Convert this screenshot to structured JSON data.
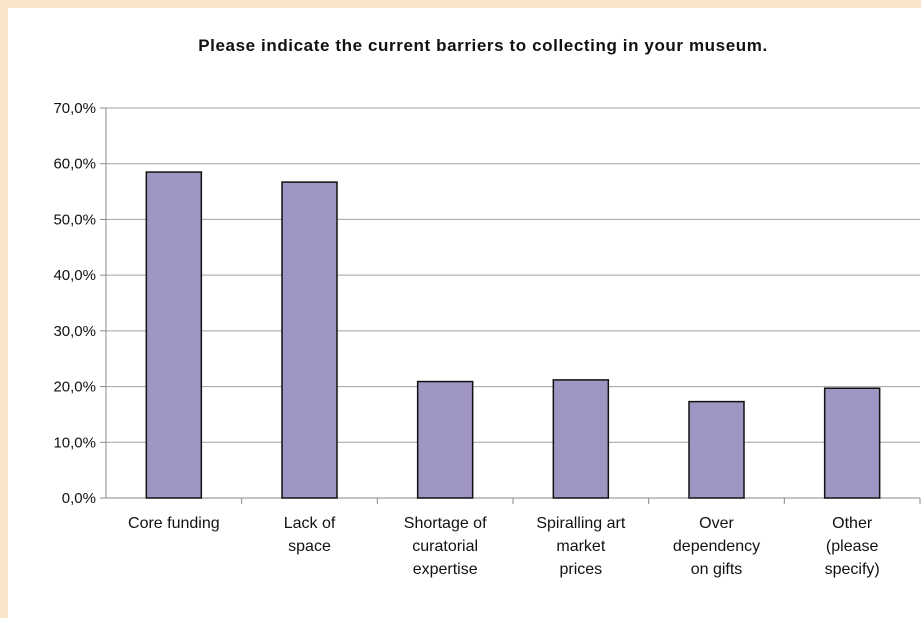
{
  "chart_data": {
    "type": "bar",
    "title": "Please indicate the current barriers to collecting in your museum.",
    "categories": [
      [
        "Core funding"
      ],
      [
        "Lack of",
        "space"
      ],
      [
        "Shortage of",
        "curatorial",
        "expertise"
      ],
      [
        "Spiralling art",
        "market",
        "prices"
      ],
      [
        "Over",
        "dependency",
        "on gifts"
      ],
      [
        "Other",
        "(please",
        "specify)"
      ]
    ],
    "values": [
      58.5,
      56.7,
      20.9,
      21.2,
      17.3,
      19.7
    ],
    "ylim": [
      0,
      70
    ],
    "yticks": [
      "0,0%",
      "10,0%",
      "20,0%",
      "30,0%",
      "40,0%",
      "50,0%",
      "60,0%",
      "70,0%"
    ],
    "grid": true,
    "colors": {
      "bar": "#a096c4",
      "bar_edge": "#111111",
      "grid": "#a0a0a0",
      "background": "#f8e4c6"
    }
  }
}
